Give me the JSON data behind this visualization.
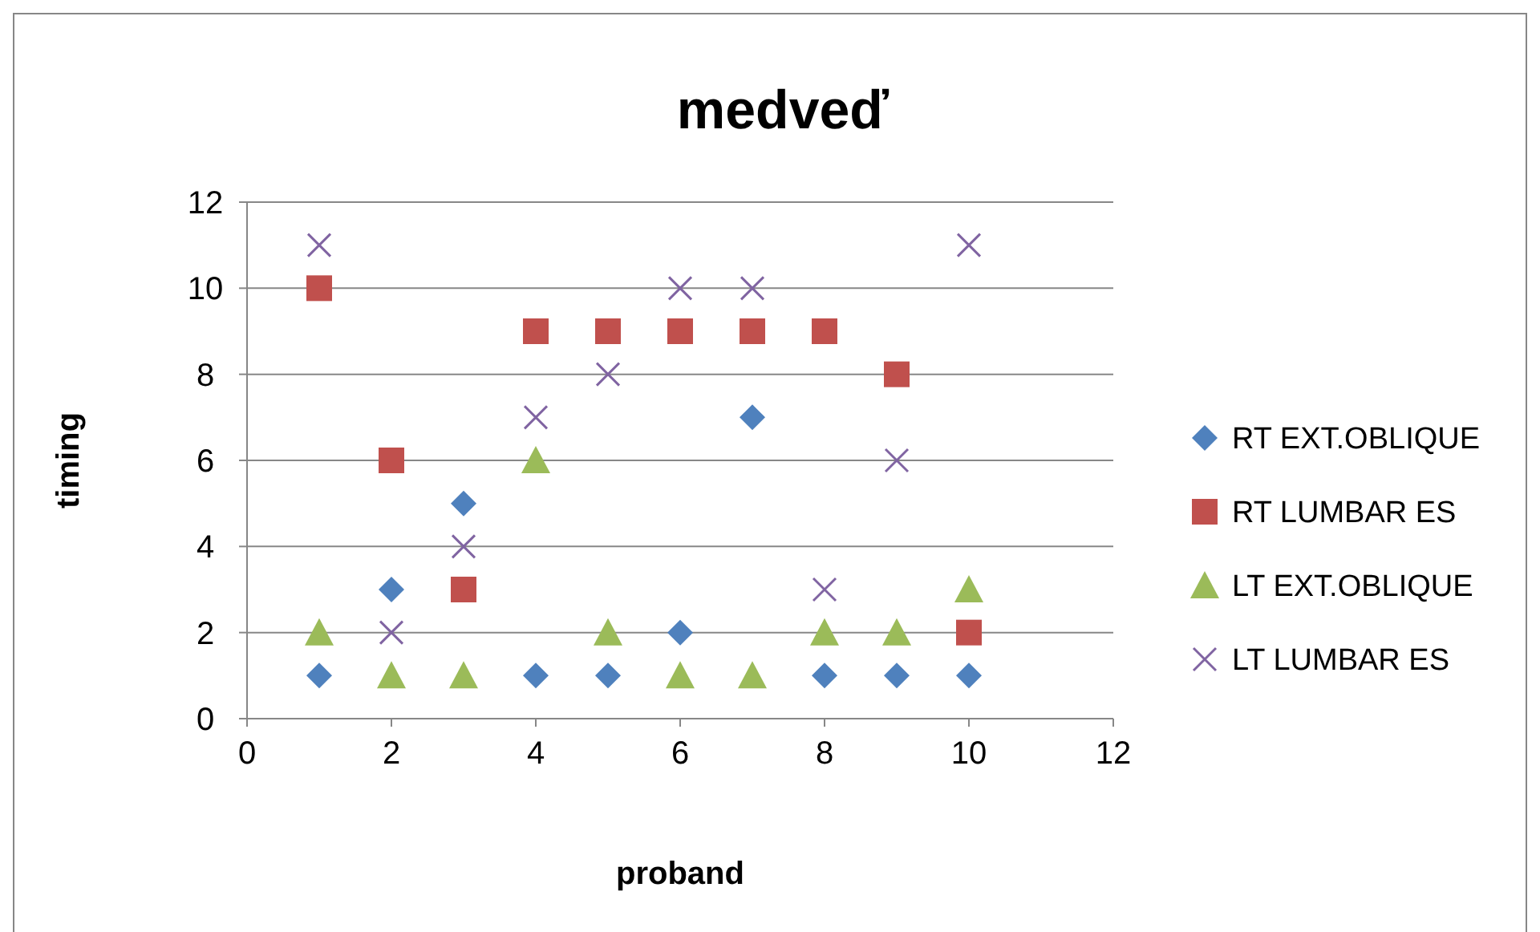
{
  "chart_data": {
    "type": "scatter",
    "title": "medveď",
    "xlabel": "proband",
    "ylabel": "timing",
    "xlim": [
      0,
      12
    ],
    "xticks": [
      0,
      2,
      4,
      6,
      8,
      10,
      12
    ],
    "ylim": [
      0,
      12
    ],
    "yticks": [
      0,
      2,
      4,
      6,
      8,
      10,
      12
    ],
    "grid": "y",
    "legend": "right",
    "x": [
      1,
      2,
      3,
      4,
      5,
      6,
      7,
      8,
      9,
      10
    ],
    "series": [
      {
        "name": "RT EXT.OBLIQUE",
        "color": "#4f81bd",
        "marker": "diamond",
        "values": [
          1,
          3,
          5,
          1,
          1,
          2,
          7,
          1,
          1,
          1
        ]
      },
      {
        "name": "RT LUMBAR ES",
        "color": "#c0504d",
        "marker": "square",
        "values": [
          10,
          6,
          3,
          9,
          9,
          9,
          9,
          9,
          8,
          2
        ]
      },
      {
        "name": "LT EXT.OBLIQUE",
        "color": "#9bbb59",
        "marker": "triangle",
        "values": [
          2,
          1,
          1,
          6,
          2,
          1,
          1,
          2,
          2,
          3
        ]
      },
      {
        "name": "LT LUMBAR ES",
        "color": "#8064a2",
        "marker": "cross",
        "values": [
          11,
          2,
          4,
          7,
          8,
          10,
          10,
          3,
          6,
          11
        ]
      }
    ]
  }
}
